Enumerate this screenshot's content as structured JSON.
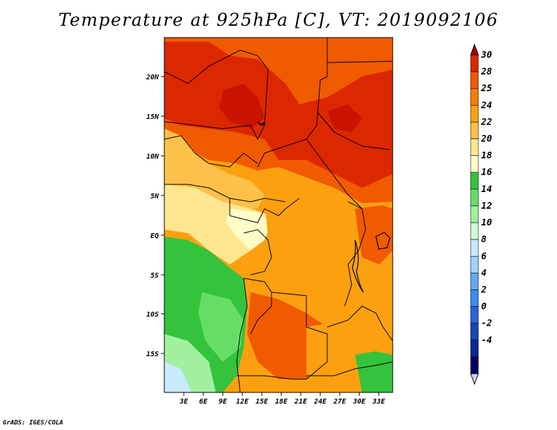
{
  "title": "Temperature at 925hPa [C], VT: 2019092106",
  "footer": "GrADS: IGES/COLA",
  "lat_labels": [
    "20N",
    "15N",
    "10N",
    "5N",
    "EQ",
    "5S",
    "10S",
    "15S"
  ],
  "lon_labels": [
    "3E",
    "6E",
    "9E",
    "12E",
    "15E",
    "18E",
    "21E",
    "24E",
    "27E",
    "30E",
    "33E"
  ],
  "colorbar": {
    "labels": [
      "30",
      "28",
      "25",
      "24",
      "22",
      "20",
      "18",
      "16",
      "14",
      "12",
      "10",
      "8",
      "6",
      "4",
      "2",
      "0",
      "-2",
      "-4"
    ],
    "colors": [
      "#ad0000",
      "#dc2800",
      "#f05a00",
      "#f57d00",
      "#fca010",
      "#fdc04a",
      "#fee690",
      "#fffcc8",
      "#33c33c",
      "#66de66",
      "#a0f0a0",
      "#d2fad2",
      "#c8eafc",
      "#a0d2fa",
      "#64aaf0",
      "#3c8cf0",
      "#2864dc",
      "#1446b4",
      "#0a2896",
      "#000064",
      "#d0d0f8"
    ]
  },
  "map_colors": {
    "hot": "#dc2800",
    "veryhot": "#c81400",
    "warm": "#f05a00",
    "mild": "#fca010",
    "tan": "#fdc04a",
    "light": "#fee690",
    "pale": "#fffcc8",
    "green": "#33c33c",
    "lgreen": "#66de66",
    "vlgreen": "#a0f0a0",
    "blue": "#c8eafc"
  }
}
